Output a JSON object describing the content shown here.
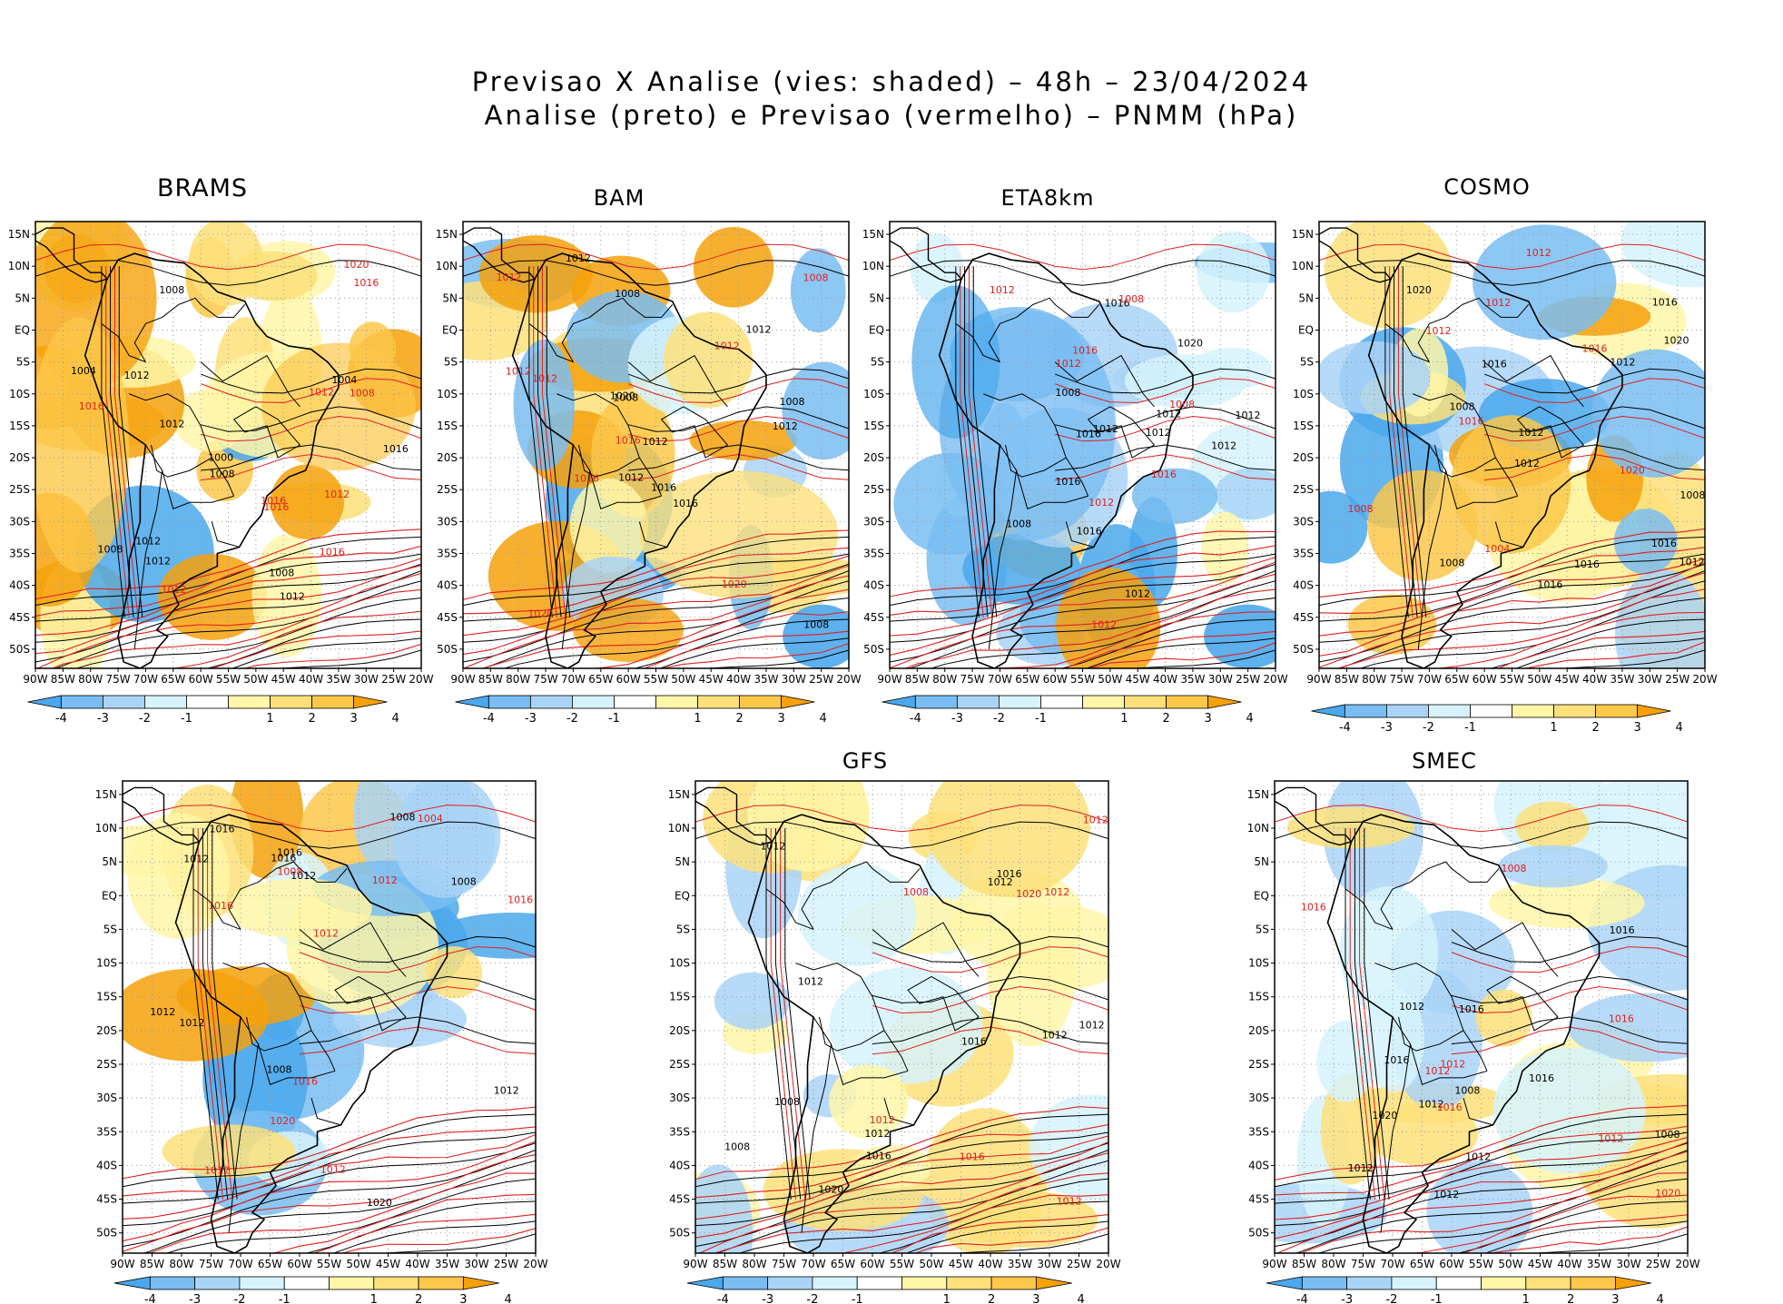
{
  "title": {
    "line1": "Previsao X Analise (vies: shaded) – 48h – 23/04/2024",
    "line2": "Analise (preto) e Previsao (vermelho) – PNMM (hPa)"
  },
  "axes": {
    "lon_labels": [
      "90W",
      "85W",
      "80W",
      "75W",
      "70W",
      "65W",
      "60W",
      "55W",
      "50W",
      "45W",
      "40W",
      "35W",
      "30W",
      "25W",
      "20W"
    ],
    "lat_labels": [
      "15N",
      "10N",
      "5N",
      "EQ",
      "5S",
      "10S",
      "15S",
      "20S",
      "25S",
      "30S",
      "35S",
      "40S",
      "45S",
      "50S"
    ]
  },
  "colorbar": {
    "labels": [
      "-4",
      "-3",
      "-2",
      "-1",
      "1",
      "2",
      "3",
      "4"
    ],
    "colors": [
      "#4aa8ec",
      "#79bdf2",
      "#a9d4f7",
      "#d6f3fb",
      "#ffffff",
      "#fff6a8",
      "#fde07a",
      "#fcc84a",
      "#f6a10a"
    ]
  },
  "colors": {
    "analysis": "#000000",
    "forecast": "#e02020",
    "grid": "#9a9a9a"
  },
  "panels": [
    {
      "name": "BRAMS",
      "label": "BRAMS",
      "bias": "warm",
      "analysis_labels": [
        "1012",
        "1008",
        "1012",
        "1012",
        "1004",
        "1008",
        "1016",
        "1012",
        "1008",
        "1012",
        "1008",
        "1004",
        "1000"
      ],
      "forecast_labels": [
        "1016",
        "1012",
        "1020",
        "1016",
        "1016",
        "1012",
        "1008",
        "1016",
        "1016",
        "1012"
      ]
    },
    {
      "name": "BAM",
      "label": "BAM",
      "bias": "mixed-warm",
      "analysis_labels": [
        "1012",
        "1012",
        "1008",
        "1012",
        "1008",
        "1016",
        "1020",
        "1012",
        "1008",
        "1016",
        "1012",
        "1008"
      ],
      "forecast_labels": [
        "1008",
        "1012",
        "1012",
        "1012",
        "1016",
        "1020",
        "1020",
        "1012",
        "1016"
      ]
    },
    {
      "name": "ETA8km",
      "label": "ETA8km",
      "bias": "cold",
      "analysis_labels": [
        "1012",
        "1012",
        "1012",
        "1008",
        "1012",
        "1016",
        "1020",
        "1016",
        "1008",
        "1012",
        "1016",
        "1012",
        "1016"
      ],
      "forecast_labels": [
        "1012",
        "1008",
        "1012",
        "1016",
        "1012",
        "1016",
        "1012",
        "1008"
      ]
    },
    {
      "name": "COSMO",
      "label": "COSMO",
      "bias": "mixed",
      "analysis_labels": [
        "1012",
        "1012",
        "1016",
        "1008",
        "1012",
        "1016",
        "1020",
        "1016",
        "1016",
        "1020",
        "1008",
        "1012",
        "1016",
        "1008"
      ],
      "forecast_labels": [
        "1012",
        "1012",
        "1008",
        "1016",
        "1020",
        "1016",
        "1012",
        "1004"
      ]
    },
    {
      "name": "panel-5",
      "label": "",
      "bias": "mixed-cold",
      "analysis_labels": [
        "1012",
        "1012",
        "1008",
        "1016",
        "1012",
        "1016",
        "1020",
        "1008",
        "1012",
        "1016",
        "1012",
        "1008"
      ],
      "forecast_labels": [
        "1016",
        "1012",
        "1012",
        "1012",
        "1020",
        "1016",
        "1012",
        "1016",
        "1004",
        "1008"
      ]
    },
    {
      "name": "GFS",
      "label": "GFS",
      "bias": "slight-warm",
      "analysis_labels": [
        "1012",
        "1012",
        "1012",
        "1012",
        "1016",
        "1020",
        "1008",
        "1016",
        "1012",
        "1016",
        "1012",
        "1008"
      ],
      "forecast_labels": [
        "1012",
        "1012",
        "1012",
        "1020",
        "1016",
        "1012",
        "1008"
      ]
    },
    {
      "name": "SMEC",
      "label": "SMEC",
      "bias": "slight",
      "analysis_labels": [
        "1012",
        "1012",
        "1012",
        "1016",
        "1016",
        "1020",
        "1008",
        "1016",
        "1012",
        "1016",
        "1012",
        "1008"
      ],
      "forecast_labels": [
        "1016",
        "1012",
        "1012",
        "1016",
        "1020",
        "1012",
        "1016",
        "1008"
      ]
    }
  ]
}
